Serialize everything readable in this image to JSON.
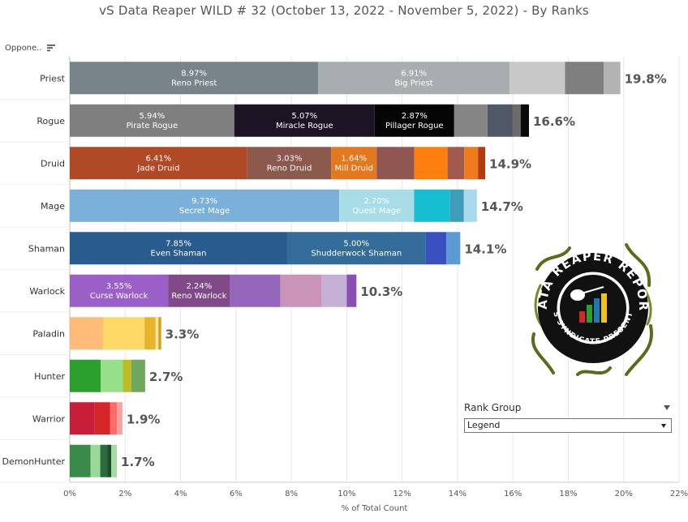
{
  "header": {
    "title": "vS Data Reaper WILD # 32 (October 13, 2022 - November 5, 2022) - By Ranks",
    "column_label": "Oppone.."
  },
  "rank_group": {
    "title": "Rank Group",
    "selected": "Legend"
  },
  "logo": {
    "text_top": "DATA REAPER REPORT",
    "text_bottom": "VS SYNDICATE PRESENTS"
  },
  "chart_data": {
    "type": "bar",
    "orientation": "horizontal",
    "stacked": true,
    "xlabel": "% of Total Count",
    "xlim": [
      0,
      22
    ],
    "xticks": [
      "0%",
      "2%",
      "4%",
      "6%",
      "8%",
      "10%",
      "12%",
      "14%",
      "16%",
      "18%",
      "20%",
      "22%"
    ],
    "grid": true,
    "rows": [
      {
        "class": "Priest",
        "total": "19.8%",
        "segments": [
          {
            "value": 8.97,
            "color": "#79838a",
            "label": "8.97%",
            "name": "Reno Priest"
          },
          {
            "value": 6.91,
            "color": "#a8adb0",
            "label": "6.91%",
            "name": "Big Priest"
          },
          {
            "value": 2.0,
            "color": "#c8c8c8"
          },
          {
            "value": 1.4,
            "color": "#7f7f7f"
          },
          {
            "value": 0.6,
            "color": "#b3b3b3"
          }
        ]
      },
      {
        "class": "Rogue",
        "total": "16.6%",
        "segments": [
          {
            "value": 5.94,
            "color": "#7f7f7f",
            "label": "5.94%",
            "name": "Pirate Rogue"
          },
          {
            "value": 5.07,
            "color": "#1c1324",
            "label": "5.07%",
            "name": "Miracle Rogue"
          },
          {
            "value": 2.87,
            "color": "#050505",
            "label": "2.87%",
            "name": "Pillager Rogue"
          },
          {
            "value": 1.2,
            "color": "#858585"
          },
          {
            "value": 0.9,
            "color": "#4f5968"
          },
          {
            "value": 0.3,
            "color": "#6b6b6b"
          },
          {
            "value": 0.3,
            "color": "#0a0a0a"
          }
        ]
      },
      {
        "class": "Druid",
        "total": "14.9%",
        "segments": [
          {
            "value": 6.41,
            "color": "#b04a26",
            "label": "6.41%",
            "name": "Jade Druid"
          },
          {
            "value": 3.03,
            "color": "#8c5a4c",
            "label": "3.03%",
            "name": "Reno Druid"
          },
          {
            "value": 1.64,
            "color": "#e4781e",
            "label": "1.64%",
            "name": "Mill Druid"
          },
          {
            "value": 1.36,
            "color": "#8f5750"
          },
          {
            "value": 1.2,
            "color": "#ff7f0e"
          },
          {
            "value": 0.6,
            "color": "#a05a4e"
          },
          {
            "value": 0.5,
            "color": "#f07b1e"
          },
          {
            "value": 0.26,
            "color": "#b33a12"
          }
        ]
      },
      {
        "class": "Mage",
        "total": "14.7%",
        "segments": [
          {
            "value": 9.73,
            "color": "#7ab0d9",
            "label": "9.73%",
            "name": "Secret Mage"
          },
          {
            "value": 2.7,
            "color": "#a8dde8",
            "label": "2.70%",
            "name": "Quest Mage"
          },
          {
            "value": 1.3,
            "color": "#17becf"
          },
          {
            "value": 0.5,
            "color": "#3f9cba"
          },
          {
            "value": 0.47,
            "color": "#a9d9ea"
          }
        ]
      },
      {
        "class": "Shaman",
        "total": "14.1%",
        "segments": [
          {
            "value": 7.85,
            "color": "#2a5b8e",
            "label": "7.85%",
            "name": "Even Shaman"
          },
          {
            "value": 5.0,
            "color": "#336b99",
            "label": "5.00%",
            "name": "Shudderwock Shaman"
          },
          {
            "value": 0.75,
            "color": "#3a50c0"
          },
          {
            "value": 0.5,
            "color": "#5b9bd5"
          }
        ]
      },
      {
        "class": "Warlock",
        "total": "10.3%",
        "segments": [
          {
            "value": 3.55,
            "color": "#9a60c8",
            "label": "3.55%",
            "name": "Curse Warlock"
          },
          {
            "value": 2.24,
            "color": "#7f4a87",
            "label": "2.24%",
            "name": "Reno Warlock"
          },
          {
            "value": 1.81,
            "color": "#9467bd"
          },
          {
            "value": 1.5,
            "color": "#c994b8"
          },
          {
            "value": 0.9,
            "color": "#c5b0d5"
          },
          {
            "value": 0.35,
            "color": "#8a4fb3"
          }
        ]
      },
      {
        "class": "Paladin",
        "total": "3.3%",
        "segments": [
          {
            "value": 1.2,
            "color": "#ffbb78"
          },
          {
            "value": 1.5,
            "color": "#fdd966"
          },
          {
            "value": 0.4,
            "color": "#e6b52b"
          },
          {
            "value": 0.1,
            "color": "#f7e2a0"
          },
          {
            "value": 0.1,
            "color": "#d4a017"
          }
        ]
      },
      {
        "class": "Hunter",
        "total": "2.7%",
        "segments": [
          {
            "value": 1.12,
            "color": "#2ca02c"
          },
          {
            "value": 0.8,
            "color": "#98df8a"
          },
          {
            "value": 0.3,
            "color": "#bcbd22"
          },
          {
            "value": 0.5,
            "color": "#6fa85c"
          }
        ]
      },
      {
        "class": "Warrior",
        "total": "1.9%",
        "segments": [
          {
            "value": 0.9,
            "color": "#c71f3a"
          },
          {
            "value": 0.55,
            "color": "#d62728"
          },
          {
            "value": 0.25,
            "color": "#ff6b6b"
          },
          {
            "value": 0.2,
            "color": "#f4a3a3"
          }
        ]
      },
      {
        "class": "DemonHunter",
        "total": "1.7%",
        "segments": [
          {
            "value": 0.75,
            "color": "#3a8a4a"
          },
          {
            "value": 0.35,
            "color": "#9ad99a"
          },
          {
            "value": 0.25,
            "color": "#2e6b3c"
          },
          {
            "value": 0.15,
            "color": "#1b4d2b"
          },
          {
            "value": 0.2,
            "color": "#a6dba0"
          }
        ]
      }
    ]
  }
}
